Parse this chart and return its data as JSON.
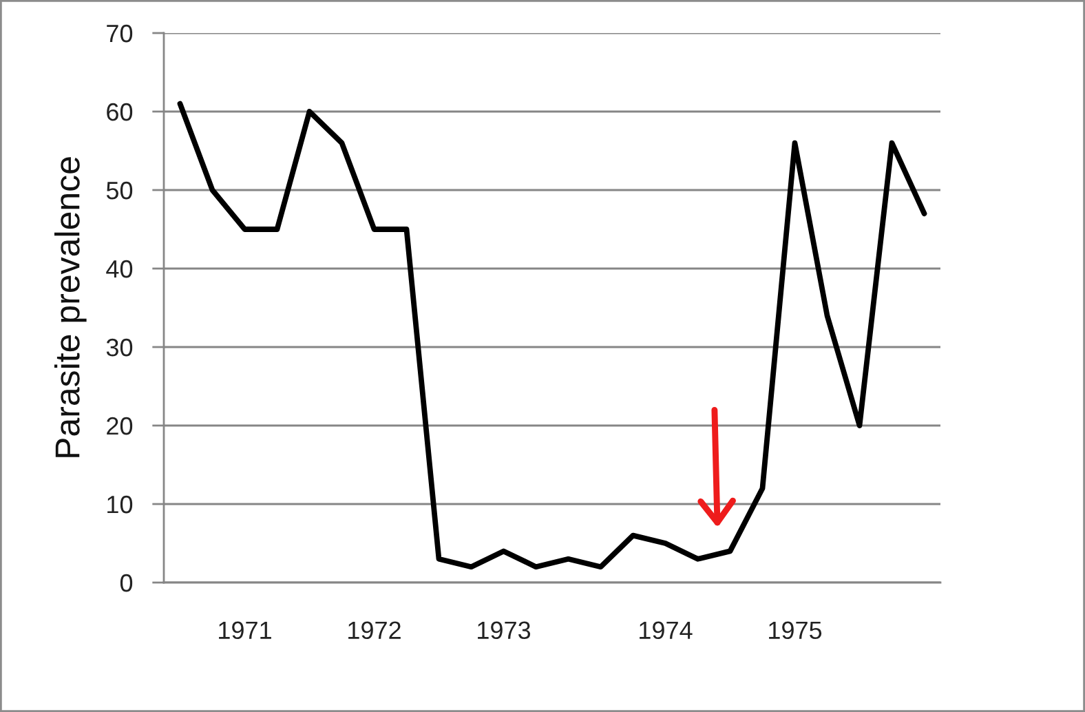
{
  "chart_data": {
    "type": "line",
    "ylabel": "Parasite prevalence",
    "categories": [
      null,
      null,
      "1971",
      null,
      null,
      null,
      "1972",
      null,
      null,
      null,
      "1973",
      null,
      null,
      null,
      null,
      "1974",
      null,
      null,
      null,
      "1975",
      null,
      null,
      null,
      null
    ],
    "series": [
      {
        "color": "#000000",
        "values": [
          61,
          50,
          45,
          45,
          60,
          56,
          45,
          45,
          3,
          2,
          4,
          2,
          3,
          2,
          6,
          5,
          3,
          4,
          12,
          56,
          34,
          20,
          56,
          47
        ]
      }
    ],
    "ylim": [
      0,
      70
    ],
    "yticks": [
      0,
      10,
      20,
      30,
      40,
      50,
      60,
      70
    ],
    "grid": "y",
    "line_style": "solid"
  }
}
